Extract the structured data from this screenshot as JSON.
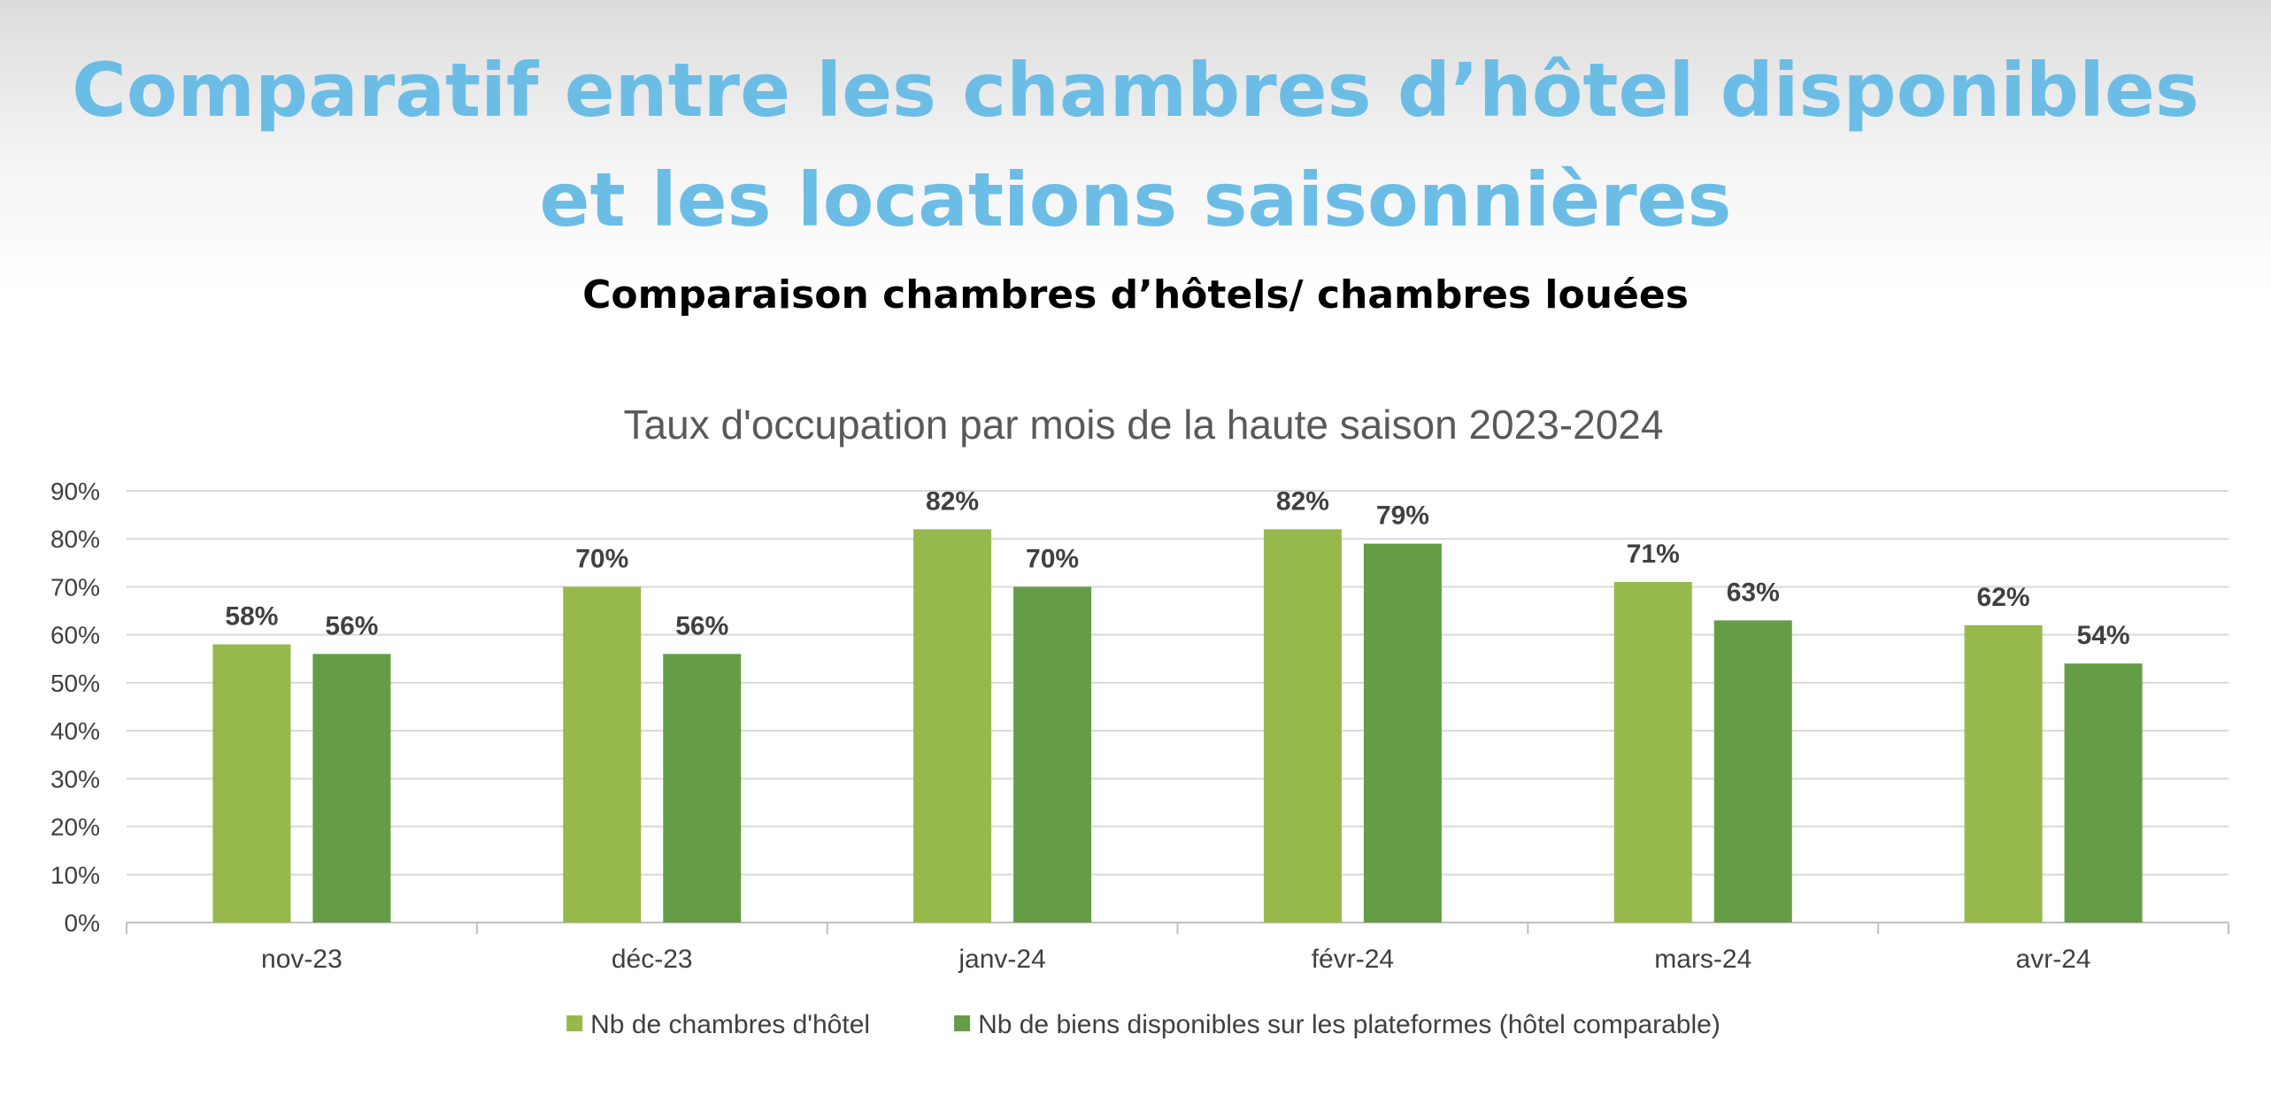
{
  "header": {
    "title_line1": "Comparatif entre les chambres d’hôtel disponibles",
    "title_line2": "et les locations saisonnières",
    "subtitle": "Comparaison chambres d’hôtels/ chambres louées"
  },
  "chart_data": {
    "type": "bar",
    "title": "Taux d'occupation par mois de la haute saison 2023-2024",
    "xlabel": "",
    "ylabel": "",
    "ylim": [
      0,
      90
    ],
    "yticks": [
      "0%",
      "10%",
      "20%",
      "30%",
      "40%",
      "50%",
      "60%",
      "70%",
      "80%",
      "90%"
    ],
    "grid": true,
    "legend_position": "bottom",
    "categories": [
      "nov-23",
      "déc-23",
      "janv-24",
      "févr-24",
      "mars-24",
      "avr-24"
    ],
    "series": [
      {
        "name": "Nb de chambres d'hôtel",
        "color": "#97b84b",
        "values": [
          58,
          70,
          82,
          82,
          71,
          62
        ],
        "labels": [
          "58%",
          "70%",
          "82%",
          "82%",
          "71%",
          "62%"
        ]
      },
      {
        "name": "Nb de biens disponibles sur les plateformes (hôtel comparable)",
        "color": "#649d46",
        "values": [
          56,
          56,
          70,
          79,
          63,
          54
        ],
        "labels": [
          "56%",
          "56%",
          "70%",
          "79%",
          "63%",
          "54%"
        ]
      }
    ]
  }
}
